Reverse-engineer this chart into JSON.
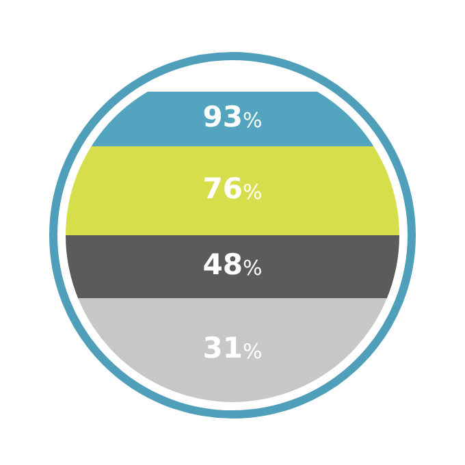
{
  "chart_data": {
    "type": "other",
    "categories": [
      null,
      null,
      null,
      null
    ],
    "values": [
      93,
      76,
      48,
      31
    ],
    "value_labels": [
      "93%",
      "76%",
      "48%",
      "31%"
    ],
    "colors": [
      "#53a5bf",
      "#d6df4b",
      "#5b5b5b",
      "#c7c7c7"
    ]
  }
}
